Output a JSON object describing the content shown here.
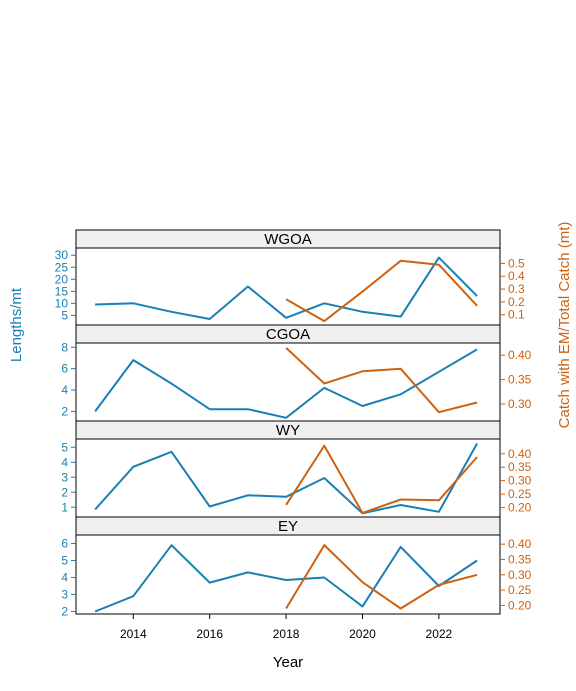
{
  "chart_data": {
    "type": "line",
    "xlabel": "Year",
    "ylabel_left": "Lengths/mt",
    "ylabel_right": "Catch with EM/Total Catch (mt)",
    "colors": {
      "left": "#1a7fb3",
      "right": "#cc6212"
    },
    "xlim": [
      2012.5,
      2023.6
    ],
    "x_ticks": [
      2014,
      2016,
      2018,
      2020,
      2022
    ],
    "panels": [
      {
        "title": "WGOA",
        "left_ylim": [
          1,
          33
        ],
        "right_ylim": [
          0.02,
          0.62
        ],
        "left_ticks": [
          5,
          10,
          15,
          20,
          25,
          30
        ],
        "right_ticks": [
          0.1,
          0.2,
          0.3,
          0.4,
          0.5
        ],
        "right_tick_labels": [
          "0.1",
          "0.2",
          "0.3",
          "0.4",
          "0.5"
        ],
        "lengths": {
          "x": [
            2013,
            2014,
            2015,
            2016,
            2017,
            2018,
            2019,
            2020,
            2021,
            2022,
            2023
          ],
          "y": [
            9.5,
            10,
            6.5,
            3.5,
            17,
            4,
            10,
            6.5,
            4.5,
            29,
            13
          ]
        },
        "catch": {
          "x": [
            2018,
            2019,
            2020,
            2021,
            2022,
            2023
          ],
          "y": [
            0.22,
            0.05,
            0.28,
            0.52,
            0.49,
            0.17
          ]
        }
      },
      {
        "title": "CGOA",
        "left_ylim": [
          1.1,
          8.4
        ],
        "right_ylim": [
          0.265,
          0.425
        ],
        "left_ticks": [
          2,
          4,
          6,
          8
        ],
        "right_ticks": [
          0.3,
          0.35,
          0.4
        ],
        "right_tick_labels": [
          "0.30",
          "0.35",
          "0.40"
        ],
        "lengths": {
          "x": [
            2013,
            2014,
            2015,
            2016,
            2017,
            2018,
            2019,
            2020,
            2021,
            2022,
            2023
          ],
          "y": [
            2,
            6.8,
            4.6,
            2.2,
            2.2,
            1.4,
            4.2,
            2.5,
            3.6,
            5.7,
            7.8
          ]
        },
        "catch": {
          "x": [
            2018,
            2019,
            2020,
            2021,
            2022,
            2023
          ],
          "y": [
            0.415,
            0.342,
            0.367,
            0.372,
            0.283,
            0.303
          ]
        }
      },
      {
        "title": "WY",
        "left_ylim": [
          0.35,
          5.55
        ],
        "right_ylim": [
          0.165,
          0.455
        ],
        "left_ticks": [
          1,
          2,
          3,
          4,
          5
        ],
        "right_ticks": [
          0.2,
          0.25,
          0.3,
          0.35,
          0.4
        ],
        "right_tick_labels": [
          "0.20",
          "0.25",
          "0.30",
          "0.35",
          "0.40"
        ],
        "lengths": {
          "x": [
            2013,
            2014,
            2015,
            2016,
            2017,
            2018,
            2019,
            2020,
            2021,
            2022,
            2023
          ],
          "y": [
            0.85,
            3.7,
            4.7,
            1.05,
            1.8,
            1.7,
            2.95,
            0.6,
            1.15,
            0.7,
            5.25
          ]
        },
        "catch": {
          "x": [
            2018,
            2019,
            2020,
            2021,
            2022,
            2023
          ],
          "y": [
            0.21,
            0.43,
            0.18,
            0.23,
            0.227,
            0.388
          ]
        }
      },
      {
        "title": "EY",
        "left_ylim": [
          1.85,
          6.5
        ],
        "right_ylim": [
          0.172,
          0.43
        ],
        "left_ticks": [
          2,
          3,
          4,
          5,
          6
        ],
        "right_ticks": [
          0.2,
          0.25,
          0.3,
          0.35,
          0.4
        ],
        "right_tick_labels": [
          "0.20",
          "0.25",
          "0.30",
          "0.35",
          "0.40"
        ],
        "lengths": {
          "x": [
            2013,
            2014,
            2015,
            2016,
            2017,
            2018,
            2019,
            2020,
            2021,
            2022,
            2023
          ],
          "y": [
            2,
            2.9,
            5.9,
            3.7,
            4.3,
            3.85,
            4,
            2.3,
            5.8,
            3.5,
            5
          ]
        },
        "catch": {
          "x": [
            2018,
            2019,
            2020,
            2021,
            2022,
            2023
          ],
          "y": [
            0.19,
            0.397,
            0.276,
            0.19,
            0.267,
            0.3
          ]
        }
      }
    ]
  }
}
